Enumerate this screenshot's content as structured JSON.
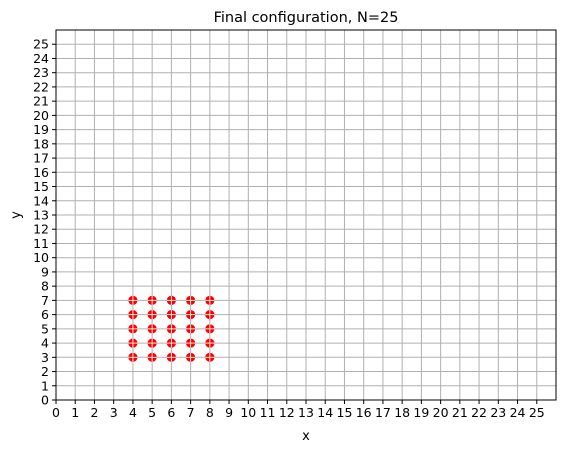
{
  "chart_data": {
    "type": "scatter",
    "title": "Final configuration, N=25",
    "xlabel": "x",
    "ylabel": "y",
    "xlim": [
      0,
      26
    ],
    "ylim": [
      0,
      26
    ],
    "xticks": [
      0,
      1,
      2,
      3,
      4,
      5,
      6,
      7,
      8,
      9,
      10,
      11,
      12,
      13,
      14,
      15,
      16,
      17,
      18,
      19,
      20,
      21,
      22,
      23,
      24,
      25
    ],
    "yticks": [
      0,
      1,
      2,
      3,
      4,
      5,
      6,
      7,
      8,
      9,
      10,
      11,
      12,
      13,
      14,
      15,
      16,
      17,
      18,
      19,
      20,
      21,
      22,
      23,
      24,
      25
    ],
    "grid": true,
    "legend": "none",
    "marker_color": "#ff0000",
    "marker_cross_color": "#ffffff",
    "points": [
      {
        "x": 4,
        "y": 3
      },
      {
        "x": 5,
        "y": 3
      },
      {
        "x": 6,
        "y": 3
      },
      {
        "x": 7,
        "y": 3
      },
      {
        "x": 8,
        "y": 3
      },
      {
        "x": 4,
        "y": 4
      },
      {
        "x": 5,
        "y": 4
      },
      {
        "x": 6,
        "y": 4
      },
      {
        "x": 7,
        "y": 4
      },
      {
        "x": 8,
        "y": 4
      },
      {
        "x": 4,
        "y": 5
      },
      {
        "x": 5,
        "y": 5
      },
      {
        "x": 6,
        "y": 5
      },
      {
        "x": 7,
        "y": 5
      },
      {
        "x": 8,
        "y": 5
      },
      {
        "x": 4,
        "y": 6
      },
      {
        "x": 5,
        "y": 6
      },
      {
        "x": 6,
        "y": 6
      },
      {
        "x": 7,
        "y": 6
      },
      {
        "x": 8,
        "y": 6
      },
      {
        "x": 4,
        "y": 7
      },
      {
        "x": 5,
        "y": 7
      },
      {
        "x": 6,
        "y": 7
      },
      {
        "x": 7,
        "y": 7
      },
      {
        "x": 8,
        "y": 7
      }
    ]
  }
}
